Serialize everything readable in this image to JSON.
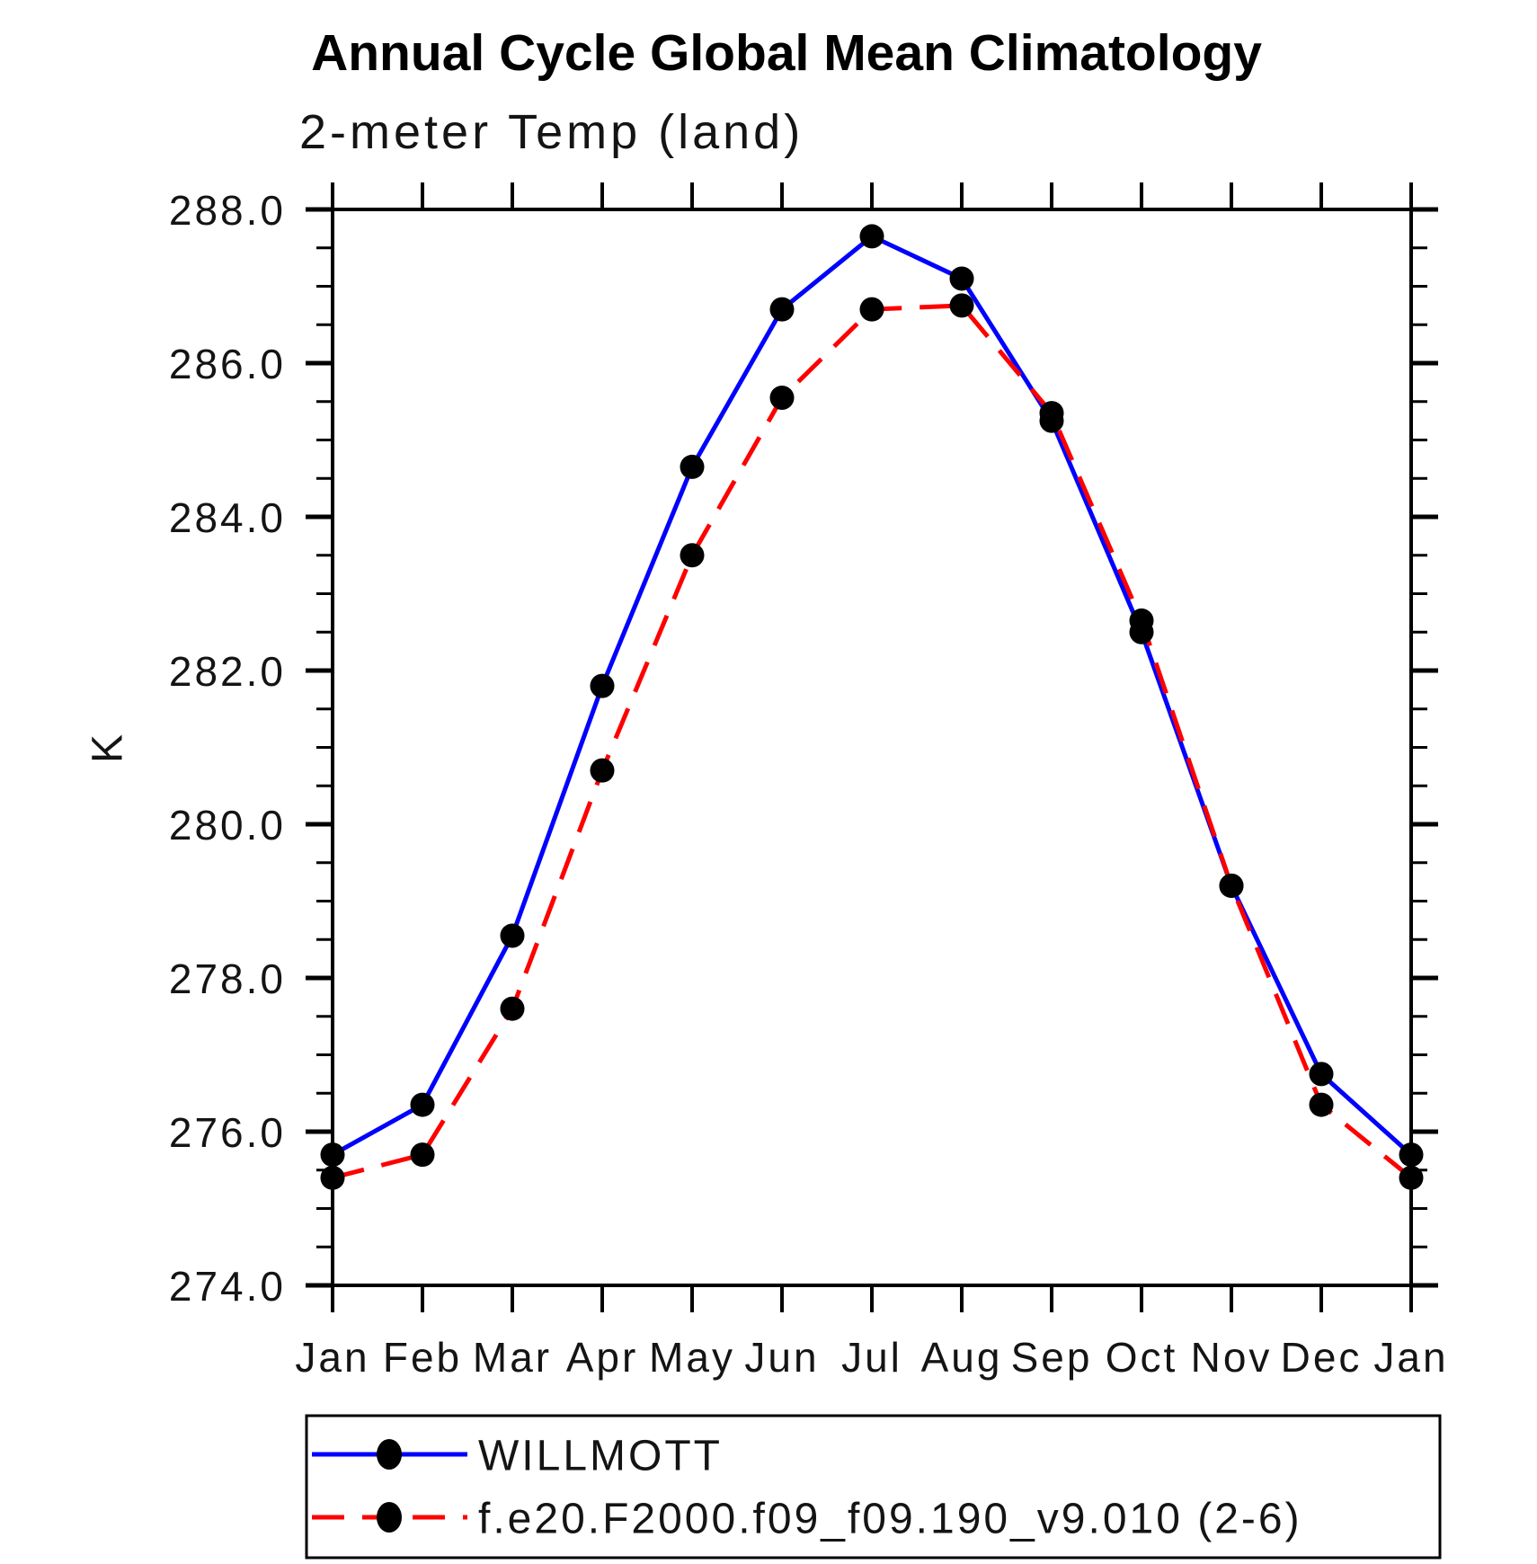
{
  "title": "Annual Cycle Global Mean Climatology",
  "subtitle": "2-meter Temp (land)",
  "chart_data": {
    "type": "line",
    "title": "Annual Cycle Global Mean Climatology",
    "subtitle": "2-meter Temp (land)",
    "xlabel": "",
    "ylabel": "K",
    "ylim": [
      274.0,
      288.0
    ],
    "y_major_tick_interval": 2.0,
    "y_minor_tick_interval": 0.5,
    "grid": false,
    "legend_position": "bottom",
    "categories": [
      "Jan",
      "Feb",
      "Mar",
      "Apr",
      "May",
      "Jun",
      "Jul",
      "Aug",
      "Sep",
      "Oct",
      "Nov",
      "Dec",
      "Jan"
    ],
    "y_tick_labels": [
      "288.0",
      "286.0",
      "284.0",
      "282.0",
      "280.0",
      "278.0",
      "276.0",
      "274.0"
    ],
    "series": [
      {
        "name": "WILLMOTT",
        "color": "#0000ff",
        "line_style": "solid",
        "marker": "filled-circle",
        "marker_color": "#000000",
        "values": [
          275.7,
          276.35,
          278.55,
          281.8,
          284.65,
          286.7,
          287.65,
          287.1,
          285.25,
          282.5,
          279.2,
          276.75,
          275.7
        ]
      },
      {
        "name": "f.e20.F2000.f09_f09.190_v9.010 (2-6)",
        "color": "#ff0000",
        "line_style": "dashed",
        "marker": "filled-circle",
        "marker_color": "#000000",
        "values": [
          275.4,
          275.7,
          277.6,
          280.7,
          283.5,
          285.55,
          286.7,
          286.75,
          285.35,
          282.65,
          279.2,
          276.35,
          275.4
        ]
      }
    ]
  },
  "colors": {
    "axis": "#000000",
    "willmott_line": "#0000ff",
    "model_line": "#ff0000",
    "marker": "#000000"
  }
}
